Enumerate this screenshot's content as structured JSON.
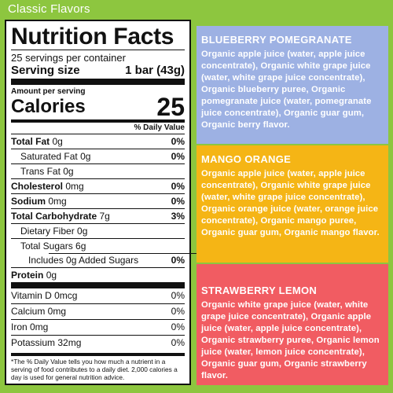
{
  "header": {
    "title": "Classic Flavors"
  },
  "nutrition": {
    "title": "Nutrition Facts",
    "servings": "25 servings per container",
    "serving_size_label": "Serving size",
    "serving_size_value": "1 bar (43g)",
    "amount_per_serving": "Amount per serving",
    "calories_label": "Calories",
    "calories_value": "25",
    "dv_header": "% Daily Value",
    "rows": [
      {
        "label": "Total Fat",
        "amount": "0g",
        "dv": "0%"
      },
      {
        "label": "Saturated Fat",
        "amount": "0g",
        "dv": "0%"
      },
      {
        "label": "Trans Fat",
        "amount": "0g",
        "dv": ""
      },
      {
        "label": "Cholesterol",
        "amount": "0mg",
        "dv": "0%"
      },
      {
        "label": "Sodium",
        "amount": "0mg",
        "dv": "0%"
      },
      {
        "label": "Total Carbohydrate",
        "amount": "7g",
        "dv": "3%"
      },
      {
        "label": "Dietary Fiber",
        "amount": "0g",
        "dv": ""
      },
      {
        "label": "Total Sugars",
        "amount": "6g",
        "dv": ""
      },
      {
        "label": "Includes 0g Added Sugars",
        "amount": "",
        "dv": "0%"
      },
      {
        "label": "Protein",
        "amount": "0g",
        "dv": ""
      }
    ],
    "vitamins": [
      {
        "label": "Vitamin D 0mcg",
        "dv": "0%"
      },
      {
        "label": "Calcium 0mg",
        "dv": "0%"
      },
      {
        "label": "Iron 0mg",
        "dv": "0%"
      },
      {
        "label": "Potassium 32mg",
        "dv": "0%"
      }
    ],
    "footnote": "*The % Daily Value tells you how much a nutrient in a serving of food contributes to a daily diet. 2,000 calories a day is used for general nutrition advice."
  },
  "flavors": [
    {
      "name": "BLUEBERRY POMEGRANATE",
      "ingredients": "Organic apple juice (water, apple juice concentrate), Organic white grape juice (water, white grape juice concentrate), Organic blueberry puree, Organic pomegranate juice (water, pomegranate juice concentrate), Organic guar gum, Organic berry flavor.",
      "color": "#9db1e3"
    },
    {
      "name": "MANGO ORANGE",
      "ingredients": "Organic apple juice (water, apple juice concentrate), Organic white grape juice (water, white grape juice concentrate), Organic orange juice (water, orange juice concentrate), Organic mango puree, Organic guar gum, Organic mango flavor.",
      "color": "#f5b515"
    },
    {
      "name": "STRAWBERRY LEMON",
      "ingredients": "Organic white grape juice (water, white grape juice concentrate), Organic apple juice (water, apple juice concentrate), Organic strawberry puree, Organic lemon juice (water, lemon juice concentrate), Organic guar gum, Organic strawberry flavor.",
      "color": "#f15c62"
    }
  ],
  "colors": {
    "background": "#8dc63f",
    "text_on_color": "#ffffff",
    "label_text": "#111111"
  }
}
